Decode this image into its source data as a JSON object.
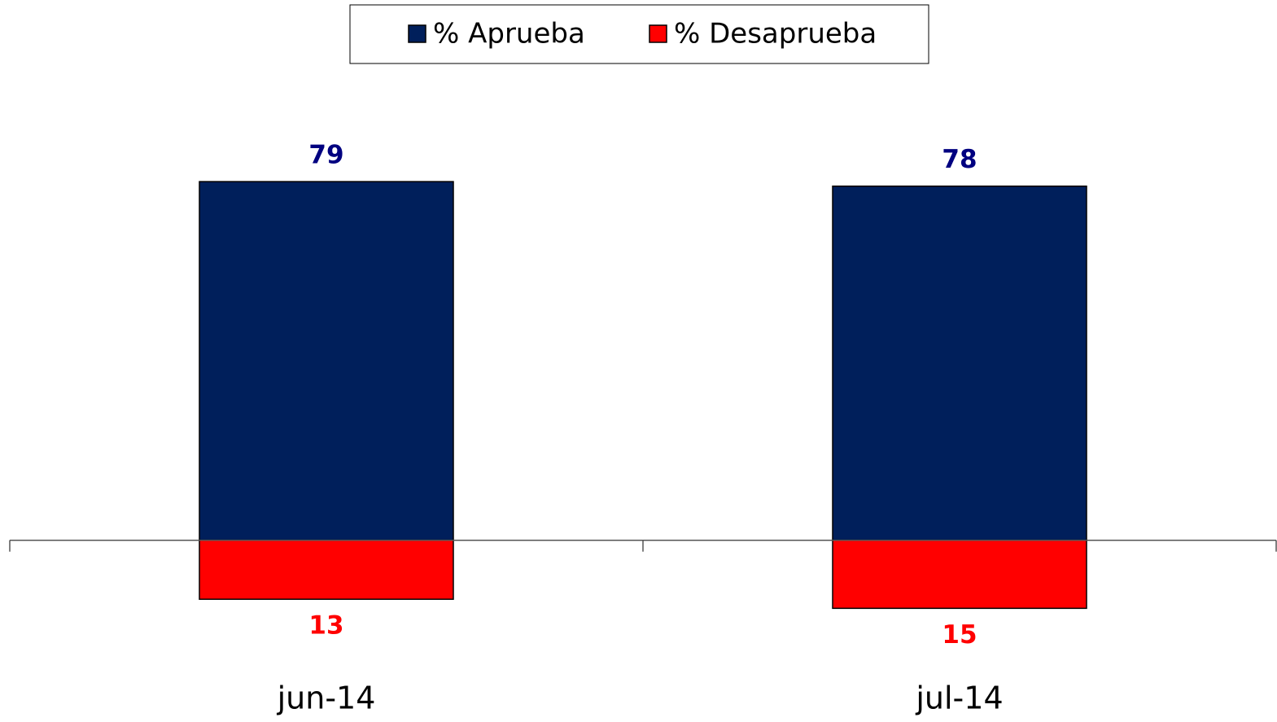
{
  "chart_data": {
    "type": "bar",
    "categories": [
      "jun-14",
      "jul-14"
    ],
    "series": [
      {
        "name": "% Aprueba",
        "color": "#001f5b",
        "values": [
          79,
          78
        ]
      },
      {
        "name": "% Desaprueba",
        "color": "#ff0000",
        "values": [
          -13,
          -15
        ],
        "value_labels": [
          "13",
          "15"
        ]
      }
    ],
    "ylim": [
      -30,
      100
    ],
    "legend": "top"
  }
}
